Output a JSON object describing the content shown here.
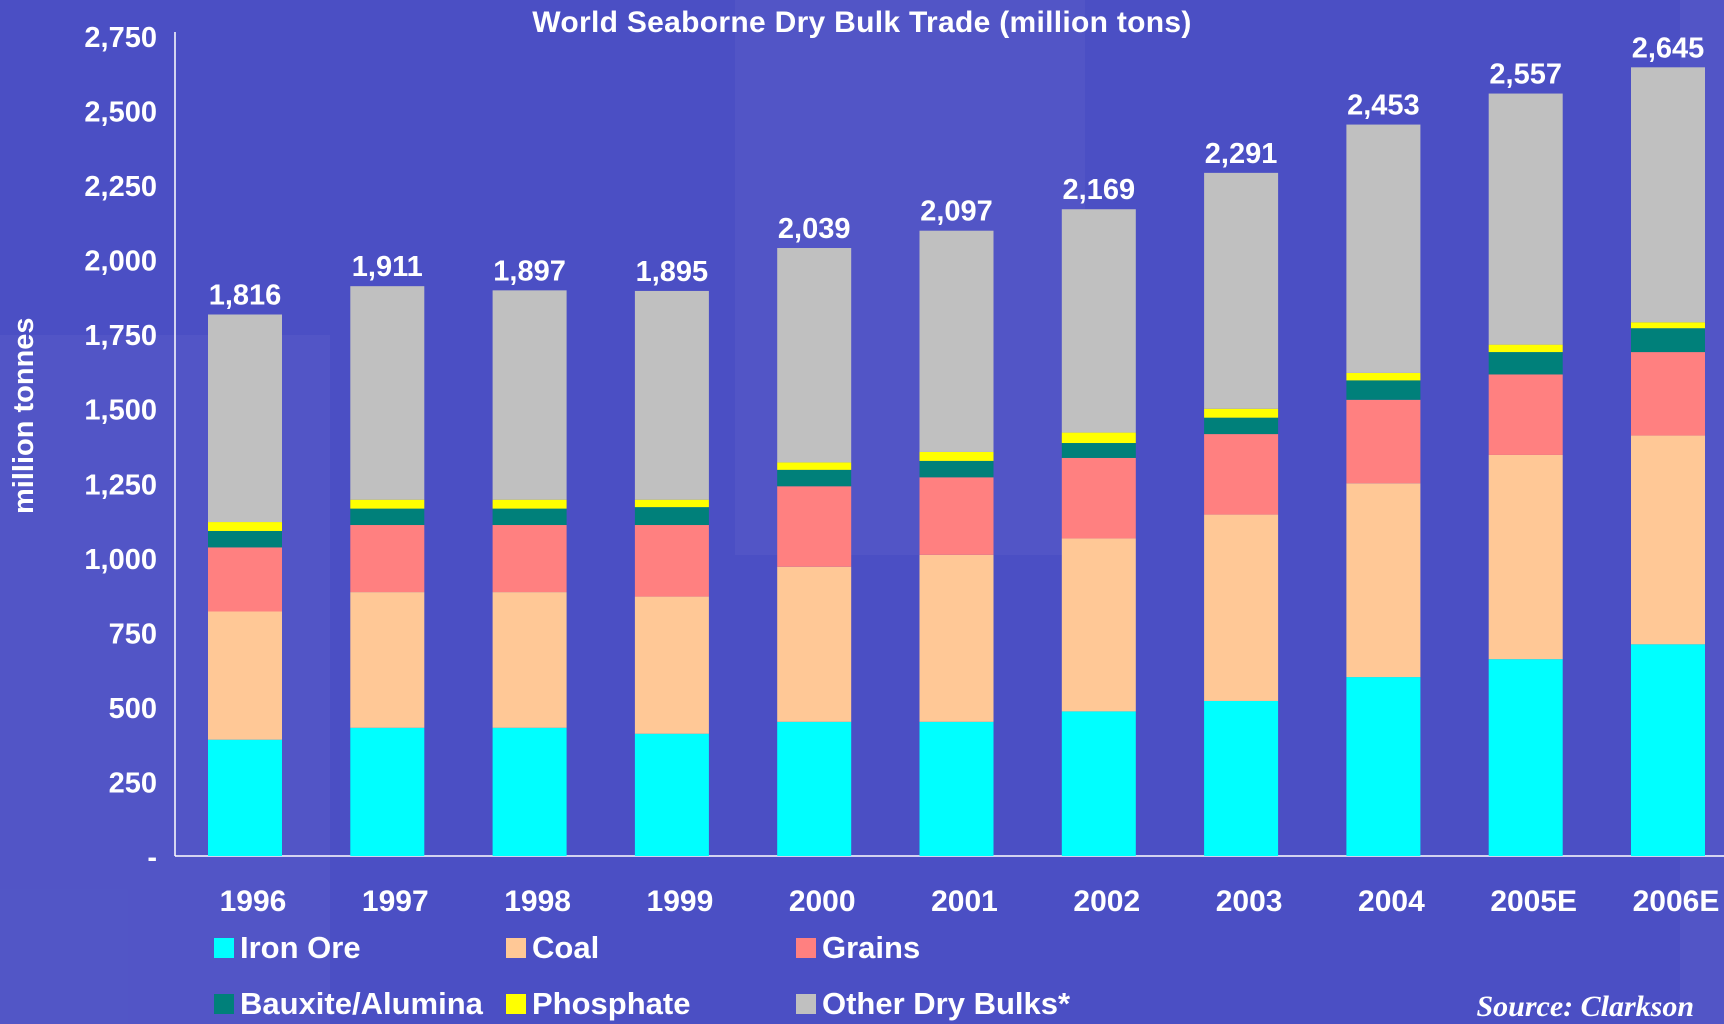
{
  "colors": {
    "background": "#4b4fc4",
    "iron_ore": "#00ffff",
    "coal": "#ffc896",
    "grains": "#ff8080",
    "bauxite": "#00807a",
    "phosphate": "#ffff00",
    "other": "#c0c0c0"
  },
  "chart_data": {
    "type": "bar",
    "stacked": true,
    "title": "World Seaborne Dry Bulk Trade (million tons)",
    "xlabel": "",
    "ylabel": "million tonnes",
    "ylim": [
      0,
      2750
    ],
    "yticks": [
      0,
      250,
      500,
      750,
      1000,
      1250,
      1500,
      1750,
      2000,
      2250,
      2500,
      2750
    ],
    "ytick_labels": [
      "-",
      "250",
      "500",
      "750",
      "1,000",
      "1,250",
      "1,500",
      "1,750",
      "2,000",
      "2,250",
      "2,500",
      "2,750"
    ],
    "categories": [
      "1996",
      "1997",
      "1998",
      "1999",
      "2000",
      "2001",
      "2002",
      "2003",
      "2004",
      "2005E",
      "2006E"
    ],
    "series": [
      {
        "name": "Iron Ore",
        "color": "#00ffff",
        "values": [
          390,
          430,
          430,
          410,
          450,
          450,
          485,
          520,
          600,
          660,
          710
        ]
      },
      {
        "name": "Coal",
        "color": "#ffc896",
        "values": [
          430,
          455,
          455,
          460,
          520,
          560,
          580,
          625,
          650,
          685,
          700
        ]
      },
      {
        "name": "Grains",
        "color": "#ff8080",
        "values": [
          215,
          225,
          225,
          240,
          270,
          260,
          270,
          270,
          280,
          270,
          280
        ]
      },
      {
        "name": "Bauxite/Alumina",
        "color": "#00807a",
        "values": [
          55,
          55,
          55,
          60,
          55,
          55,
          50,
          55,
          65,
          75,
          80
        ]
      },
      {
        "name": "Phosphate",
        "color": "#ffff00",
        "values": [
          30,
          30,
          30,
          25,
          25,
          30,
          35,
          30,
          25,
          25,
          20
        ]
      },
      {
        "name": "Other Dry Bulks*",
        "color": "#c0c0c0",
        "values": [
          696,
          716,
          702,
          700,
          719,
          742,
          749,
          791,
          833,
          842,
          855
        ]
      }
    ],
    "totals": [
      1816,
      1911,
      1897,
      1895,
      2039,
      2097,
      2169,
      2291,
      2453,
      2557,
      2645
    ],
    "total_labels": [
      "1,816",
      "1,911",
      "1,897",
      "1,895",
      "2,039",
      "2,097",
      "2,169",
      "2,291",
      "2,453",
      "2,557",
      "2,645"
    ],
    "grid": false,
    "legend_position": "bottom",
    "source": "Source: Clarkson"
  }
}
